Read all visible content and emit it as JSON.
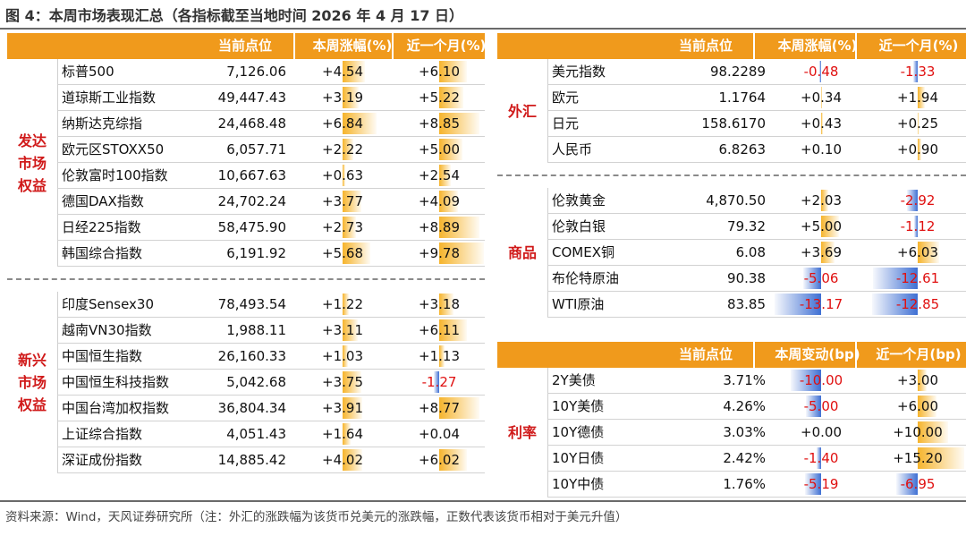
{
  "title": "图 4：本周市场表现汇总（各指标截至当地时间 2026 年 4 月 17 日）",
  "source": "资料来源：Wind，天风证券研究所（注：外汇的涨跌幅为该货币兑美元的涨跌幅，正数代表该货币相对于美元升值）",
  "colors": {
    "header": "#f09a1c",
    "positive_bar": "#f6b42c",
    "negative_bar": "#3e6fd3",
    "label": "#d01a1a"
  },
  "left": {
    "headers": [
      "当前点位",
      "本周涨幅(%)",
      "近一个月(%)"
    ],
    "groups": [
      {
        "label": "发达市场权益",
        "rows": [
          {
            "name": "标普500",
            "level": "7,126.06",
            "w": "+4.54",
            "m": "+6.10",
            "wv": 4.54,
            "mv": 6.1
          },
          {
            "name": "道琼斯工业指数",
            "level": "49,447.43",
            "w": "+3.19",
            "m": "+5.22",
            "wv": 3.19,
            "mv": 5.22
          },
          {
            "name": "纳斯达克综指",
            "level": "24,468.48",
            "w": "+6.84",
            "m": "+8.85",
            "wv": 6.84,
            "mv": 8.85
          },
          {
            "name": "欧元区STOXX50",
            "level": "6,057.71",
            "w": "+2.22",
            "m": "+5.00",
            "wv": 2.22,
            "mv": 5.0
          },
          {
            "name": "伦敦富时100指数",
            "level": "10,667.63",
            "w": "+0.63",
            "m": "+2.54",
            "wv": 0.63,
            "mv": 2.54
          },
          {
            "name": "德国DAX指数",
            "level": "24,702.24",
            "w": "+3.77",
            "m": "+4.09",
            "wv": 3.77,
            "mv": 4.09
          },
          {
            "name": "日经225指数",
            "level": "58,475.90",
            "w": "+2.73",
            "m": "+8.89",
            "wv": 2.73,
            "mv": 8.89
          },
          {
            "name": "韩国综合指数",
            "level": "6,191.92",
            "w": "+5.68",
            "m": "+9.78",
            "wv": 5.68,
            "mv": 9.78
          }
        ]
      },
      {
        "label": "新兴市场权益",
        "rows": [
          {
            "name": "印度Sensex30",
            "level": "78,493.54",
            "w": "+1.22",
            "m": "+3.18",
            "wv": 1.22,
            "mv": 3.18
          },
          {
            "name": "越南VN30指数",
            "level": "1,988.11",
            "w": "+3.11",
            "m": "+6.11",
            "wv": 3.11,
            "mv": 6.11
          },
          {
            "name": "中国恒生指数",
            "level": "26,160.33",
            "w": "+1.03",
            "m": "+1.13",
            "wv": 1.03,
            "mv": 1.13
          },
          {
            "name": "中国恒生科技指数",
            "level": "5,042.68",
            "w": "+3.75",
            "m": "-1.27",
            "wv": 3.75,
            "mv": -1.27
          },
          {
            "name": "中国台湾加权指数",
            "level": "36,804.34",
            "w": "+3.91",
            "m": "+8.77",
            "wv": 3.91,
            "mv": 8.77
          },
          {
            "name": "上证综合指数",
            "level": "4,051.43",
            "w": "+1.64",
            "m": "+0.04",
            "wv": 1.64,
            "mv": 0.04
          },
          {
            "name": "深证成份指数",
            "level": "14,885.42",
            "w": "+4.02",
            "m": "+6.02",
            "wv": 4.02,
            "mv": 6.02
          }
        ]
      }
    ]
  },
  "right_top": {
    "headers": [
      "当前点位",
      "本周涨幅(%)",
      "近一个月(%)"
    ],
    "groups": [
      {
        "label": "外汇",
        "rows": [
          {
            "name": "美元指数",
            "level": "98.2289",
            "w": "-0.48",
            "m": "-1.33",
            "wv": -0.48,
            "mv": -1.33
          },
          {
            "name": "欧元",
            "level": "1.1764",
            "w": "+0.34",
            "m": "+1.94",
            "wv": 0.34,
            "mv": 1.94
          },
          {
            "name": "日元",
            "level": "158.6170",
            "w": "+0.43",
            "m": "+0.25",
            "wv": 0.43,
            "mv": 0.25
          },
          {
            "name": "人民币",
            "level": "6.8263",
            "w": "+0.10",
            "m": "+0.90",
            "wv": 0.1,
            "mv": 0.9
          }
        ]
      },
      {
        "label": "商品",
        "rows": [
          {
            "name": "伦敦黄金",
            "level": "4,870.50",
            "w": "+2.03",
            "m": "-2.92",
            "wv": 2.03,
            "mv": -2.92
          },
          {
            "name": "伦敦白银",
            "level": "79.32",
            "w": "+5.00",
            "m": "-1.12",
            "wv": 5.0,
            "mv": -1.12
          },
          {
            "name": "COMEX铜",
            "level": "6.08",
            "w": "+3.69",
            "m": "+6.03",
            "wv": 3.69,
            "mv": 6.03
          },
          {
            "name": "布伦特原油",
            "level": "90.38",
            "w": "-5.06",
            "m": "-12.61",
            "wv": -5.06,
            "mv": -12.61
          },
          {
            "name": "WTI原油",
            "level": "83.85",
            "w": "-13.17",
            "m": "-12.85",
            "wv": -13.17,
            "mv": -12.85
          }
        ]
      }
    ]
  },
  "right_bottom": {
    "headers": [
      "当前点位",
      "本周变动(bp)",
      "近一个月(bp)"
    ],
    "groups": [
      {
        "label": "利率",
        "rows": [
          {
            "name": "2Y美债",
            "level": "3.71%",
            "w": "-10.00",
            "m": "+3.00",
            "wv": -10.0,
            "mv": 3.0
          },
          {
            "name": "10Y美债",
            "level": "4.26%",
            "w": "-5.00",
            "m": "+6.00",
            "wv": -5.0,
            "mv": 6.0
          },
          {
            "name": "10Y德债",
            "level": "3.03%",
            "w": "+0.00",
            "m": "+10.00",
            "wv": 0.0,
            "mv": 10.0
          },
          {
            "name": "10Y日债",
            "level": "2.42%",
            "w": "-1.40",
            "m": "+15.20",
            "wv": -1.4,
            "mv": 15.2
          },
          {
            "name": "10Y中债",
            "level": "1.76%",
            "w": "-5.19",
            "m": "-6.95",
            "wv": -5.19,
            "mv": -6.95
          }
        ]
      }
    ]
  }
}
